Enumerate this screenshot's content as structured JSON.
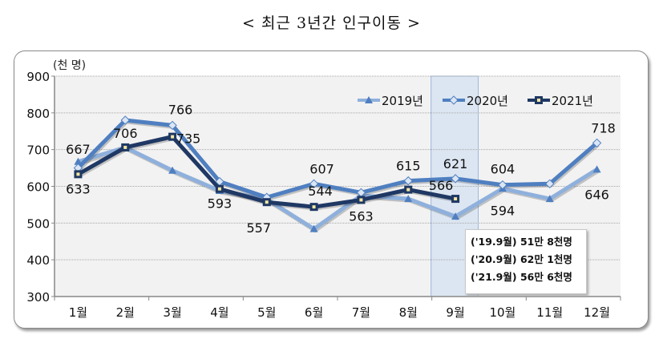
{
  "title": "< 최근 3년간 인구이동 >",
  "colors": {
    "series_2019": "#8fb0dc",
    "series_2020": "#4f7fc0",
    "series_2021": "#1f3864",
    "plot_bg": "#f2f2f2",
    "highlight": "#dce6f2",
    "highlight_border": "#9bb7db"
  },
  "note": {
    "lines": [
      "('19.9월) 51만 8천명",
      "('20.9월) 62만 1천명",
      "('21.9월) 56만 6천명"
    ]
  },
  "chart_data": {
    "type": "line",
    "title": "< 최근 3년간 인구이동 >",
    "xlabel": "",
    "ylabel": "(천 명)",
    "ylim": [
      300,
      900
    ],
    "yticks": [
      300,
      400,
      500,
      600,
      700,
      800,
      900
    ],
    "grid": true,
    "legend_position": "top-right",
    "categories": [
      "1월",
      "2월",
      "3월",
      "4월",
      "5월",
      "6월",
      "7월",
      "8월",
      "9월",
      "10월",
      "11월",
      "12월"
    ],
    "highlight_category": "9월",
    "series": [
      {
        "name": "2019년",
        "marker": "triangle",
        "values": [
          667,
          706,
          643,
          588,
          565,
          484,
          575,
          566,
          518,
          594,
          566,
          646
        ]
      },
      {
        "name": "2020년",
        "marker": "diamond",
        "values": [
          650,
          780,
          766,
          613,
          570,
          607,
          583,
          615,
          621,
          604,
          607,
          718
        ]
      },
      {
        "name": "2021년",
        "marker": "square",
        "values": [
          633,
          706,
          735,
          593,
          557,
          544,
          563,
          591,
          566,
          null,
          null,
          null
        ]
      }
    ],
    "data_labels": [
      {
        "series": "2019년",
        "category": "1월",
        "text": "667"
      },
      {
        "series": "2021년",
        "category": "1월",
        "text": "633"
      },
      {
        "series": "2021년",
        "category": "2월",
        "text": "706"
      },
      {
        "series": "2020년",
        "category": "3월",
        "text": "766"
      },
      {
        "series": "2021년",
        "category": "3월",
        "text": "735"
      },
      {
        "series": "2021년",
        "category": "4월",
        "text": "593"
      },
      {
        "series": "2021년",
        "category": "5월",
        "text": "557"
      },
      {
        "series": "2020년",
        "category": "6월",
        "text": "607"
      },
      {
        "series": "2021년",
        "category": "6월",
        "text": "544"
      },
      {
        "series": "2021년",
        "category": "7월",
        "text": "563"
      },
      {
        "series": "2020년",
        "category": "8월",
        "text": "615"
      },
      {
        "series": "2020년",
        "category": "9월",
        "text": "621"
      },
      {
        "series": "2021년",
        "category": "9월",
        "text": "566"
      },
      {
        "series": "2020년",
        "category": "10월",
        "text": "604"
      },
      {
        "series": "2019년",
        "category": "10월",
        "text": "594"
      },
      {
        "series": "2020년",
        "category": "12월",
        "text": "718"
      },
      {
        "series": "2019년",
        "category": "12월",
        "text": "646"
      }
    ],
    "annotation": [
      "('19.9월) 51만 8천명",
      "('20.9월) 62만 1천명",
      "('21.9월) 56만 6천명"
    ]
  }
}
